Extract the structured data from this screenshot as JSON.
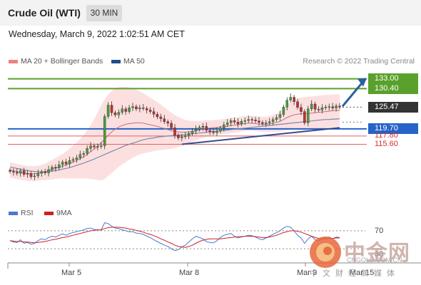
{
  "header": {
    "title": "Crude Oil (WTI)",
    "timeframe": "30 MIN"
  },
  "datetime": "Wednesday, March 9, 2022 1:02:51 AM CET",
  "legend": {
    "items": [
      {
        "label": "MA 20 + Bollinger Bands",
        "color": "#f08080"
      },
      {
        "label": "MA 50",
        "color": "#1f4e8c"
      }
    ],
    "credit": "Research © 2022 Trading Central"
  },
  "levels": [
    {
      "label": "133.00",
      "value": 133.0,
      "style": "tag",
      "color": "#5aa02c",
      "text_color": "#ffffff"
    },
    {
      "label": "130.40",
      "value": 130.4,
      "style": "tag",
      "color": "#5aa02c",
      "text_color": "#ffffff"
    },
    {
      "label": "125.47",
      "value": 125.47,
      "style": "tag",
      "color": "#333333",
      "text_color": "#ffffff"
    },
    {
      "label": "119.70",
      "value": 119.7,
      "style": "tag",
      "color": "#2563c9",
      "text_color": "#ffffff"
    },
    {
      "label": "117.80",
      "value": 117.8,
      "style": "plain",
      "color": "#e06060",
      "text_color": "#d03030"
    },
    {
      "label": "115.60",
      "value": 115.6,
      "style": "plain",
      "color": "#e06060",
      "text_color": "#d03030"
    }
  ],
  "rsi": {
    "legend": [
      {
        "label": "RSI",
        "color": "#4a78d6"
      },
      {
        "label": "9MA",
        "color": "#d02020"
      }
    ],
    "levels": [
      "70",
      "30"
    ]
  },
  "chart_data": {
    "type": "candlestick",
    "x_ticks": [
      "Mar 5",
      "Mar 8",
      "Mar 9",
      "Mar 15"
    ],
    "price_ylim": [
      100,
      135
    ],
    "rsi_ylim": [
      0,
      100
    ],
    "closes": [
      108.4,
      108.2,
      107.9,
      108.6,
      107.6,
      107.8,
      107.0,
      107.2,
      107.9,
      108.3,
      108.0,
      108.9,
      109.5,
      109.3,
      110.2,
      110.9,
      110.4,
      111.3,
      111.6,
      112.0,
      112.9,
      113.2,
      114.5,
      115.2,
      114.9,
      115.0,
      115.2,
      123.0,
      126.0,
      124.0,
      123.4,
      124.1,
      125.0,
      124.3,
      125.3,
      125.6,
      125.0,
      125.3,
      125.1,
      124.7,
      124.3,
      123.6,
      122.9,
      122.4,
      121.6,
      121.2,
      120.0,
      118.0,
      117.3,
      117.6,
      117.9,
      118.5,
      119.1,
      119.6,
      120.1,
      120.4,
      119.3,
      119.0,
      118.7,
      119.1,
      119.9,
      120.8,
      121.3,
      121.9,
      121.5,
      121.0,
      121.7,
      121.9,
      122.2,
      122.1,
      121.8,
      121.4,
      121.1,
      121.3,
      121.6,
      122.2,
      122.7,
      123.5,
      125.5,
      127.3,
      128.1,
      126.9,
      125.4,
      124.3,
      121.3,
      125.0,
      126.3,
      124.9,
      124.7,
      125.3,
      125.5,
      125.6,
      125.2,
      125.8,
      125.47
    ],
    "ma20": [
      108.8,
      108.6,
      108.4,
      108.2,
      108.0,
      107.9,
      107.8,
      107.8,
      107.9,
      108.1,
      108.3,
      108.6,
      108.9,
      109.2,
      109.5,
      109.8,
      110.1,
      110.5,
      110.9,
      111.3,
      111.8,
      112.3,
      112.9,
      113.6,
      114.3,
      115.1,
      116.0,
      117.0,
      118.0,
      118.9,
      119.6,
      120.2,
      120.6,
      120.9,
      121.1,
      121.2,
      121.3,
      121.3,
      121.2,
      121.0,
      120.8,
      120.6,
      120.4,
      120.1,
      119.8,
      119.5,
      119.2,
      119.0,
      118.9,
      118.8,
      118.8,
      118.9,
      119.0,
      119.2,
      119.4,
      119.6,
      119.8,
      119.9,
      120.0,
      120.1,
      120.2,
      120.3,
      120.4,
      120.6,
      120.7,
      120.8,
      121.0,
      121.1,
      121.2,
      121.2,
      121.1,
      121.0,
      120.9,
      120.9,
      121.0,
      121.2,
      121.4,
      121.7,
      122.2,
      122.7,
      123.1,
      123.4,
      123.6,
      123.7,
      123.7,
      123.8,
      123.9,
      124.0,
      124.1,
      124.2,
      124.3,
      124.4,
      124.5,
      124.6,
      124.6
    ],
    "ma50": [
      109.6,
      109.4,
      109.2,
      109.0,
      108.8,
      108.6,
      108.5,
      108.4,
      108.3,
      108.3,
      108.3,
      108.4,
      108.5,
      108.6,
      108.8,
      109.0,
      109.2,
      109.4,
      109.7,
      110.0,
      110.3,
      110.6,
      111.0,
      111.3,
      111.7,
      112.1,
      112.5,
      112.9,
      113.3,
      113.7,
      114.1,
      114.5,
      114.9,
      115.3,
      115.6,
      115.9,
      116.2,
      116.5,
      116.8,
      117.0,
      117.2,
      117.3,
      117.5,
      117.6,
      117.7,
      117.8,
      117.9,
      118.0,
      118.0,
      118.1,
      118.2,
      118.3,
      118.4,
      118.5,
      118.6,
      118.7,
      118.8,
      118.9,
      119.0,
      119.1,
      119.2,
      119.3,
      119.4,
      119.5,
      119.6,
      119.7,
      119.8,
      119.9,
      120.0,
      120.1,
      120.2,
      120.3,
      120.4,
      120.5,
      120.6,
      120.7,
      120.8,
      120.9,
      121.0,
      121.1,
      121.2,
      121.3,
      121.4,
      121.5,
      121.6,
      121.7,
      121.8,
      121.9,
      122.0,
      122.1,
      122.2,
      122.2,
      122.3,
      122.3,
      122.4
    ],
    "bb_width": [
      2.0,
      2.0,
      2.0,
      2.0,
      2.0,
      2.0,
      2.0,
      2.0,
      2.0,
      2.0,
      2.2,
      2.4,
      2.6,
      2.8,
      3.0,
      3.2,
      3.6,
      4.0,
      4.4,
      4.8,
      5.2,
      5.8,
      6.4,
      7.2,
      8.0,
      9.0,
      10.0,
      10.6,
      10.8,
      10.9,
      10.8,
      10.6,
      10.3,
      10.0,
      9.6,
      9.2,
      8.8,
      8.4,
      8.0,
      7.6,
      7.2,
      6.8,
      6.4,
      6.0,
      5.6,
      5.2,
      4.8,
      4.4,
      4.0,
      3.6,
      3.3,
      3.0,
      2.8,
      2.6,
      2.4,
      2.3,
      2.2,
      2.1,
      2.0,
      2.0,
      2.0,
      2.0,
      2.0,
      2.0,
      2.0,
      2.0,
      2.0,
      2.0,
      2.0,
      2.0,
      2.0,
      2.0,
      2.0,
      2.0,
      2.1,
      2.2,
      2.4,
      2.7,
      3.0,
      3.4,
      3.7,
      4.0,
      4.2,
      4.3,
      4.4,
      4.4,
      4.4,
      4.4,
      4.4,
      4.4,
      4.4,
      4.3,
      4.3,
      4.3,
      4.2
    ],
    "rsi": [
      48,
      45,
      44,
      50,
      42,
      44,
      40,
      42,
      48,
      52,
      50,
      55,
      58,
      56,
      60,
      63,
      60,
      64,
      66,
      68,
      70,
      72,
      75,
      76,
      73,
      72,
      72,
      88,
      86,
      80,
      76,
      75,
      72,
      70,
      68,
      68,
      65,
      64,
      62,
      58,
      55,
      50,
      46,
      42,
      38,
      35,
      30,
      26,
      28,
      34,
      38,
      45,
      52,
      58,
      55,
      52,
      46,
      44,
      43,
      48,
      55,
      60,
      62,
      64,
      58,
      54,
      56,
      58,
      60,
      59,
      56,
      52,
      50,
      54,
      58,
      62,
      66,
      70,
      76,
      80,
      78,
      70,
      60,
      54,
      42,
      52,
      58,
      50,
      48,
      52,
      55,
      56,
      52,
      56,
      55
    ],
    "rsi_ma": [
      48,
      47,
      46,
      46,
      45,
      45,
      44,
      43,
      44,
      45,
      46,
      48,
      50,
      51,
      53,
      55,
      56,
      58,
      60,
      62,
      64,
      66,
      68,
      70,
      71,
      72,
      72,
      75,
      77,
      78,
      78,
      78,
      77,
      76,
      74,
      73,
      71,
      69,
      67,
      64,
      62,
      59,
      56,
      52,
      49,
      45,
      42,
      38,
      35,
      34,
      33,
      35,
      38,
      42,
      46,
      49,
      51,
      52,
      52,
      52,
      52,
      53,
      54,
      55,
      56,
      57,
      57,
      58,
      58,
      58,
      57,
      56,
      55,
      55,
      56,
      58,
      60,
      63,
      66,
      68,
      70,
      70,
      69,
      67,
      64,
      61,
      58,
      55,
      53,
      52,
      52,
      53,
      53,
      54,
      54
    ]
  }
}
